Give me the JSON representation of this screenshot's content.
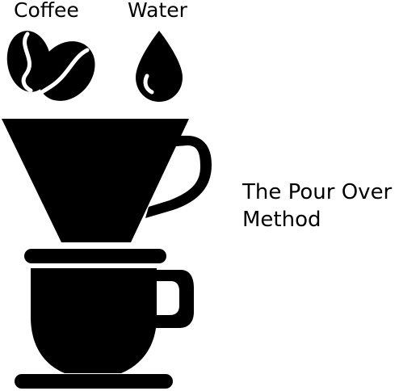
{
  "labels": {
    "coffee": "Coffee",
    "water": "Water"
  },
  "caption": {
    "line1": "The Pour Over",
    "line2": "Method"
  },
  "colors": {
    "ink": "#000000",
    "background": "#ffffff"
  },
  "icons": [
    "coffee-beans-icon",
    "water-drop-icon",
    "dripper-icon",
    "cup-icon"
  ]
}
